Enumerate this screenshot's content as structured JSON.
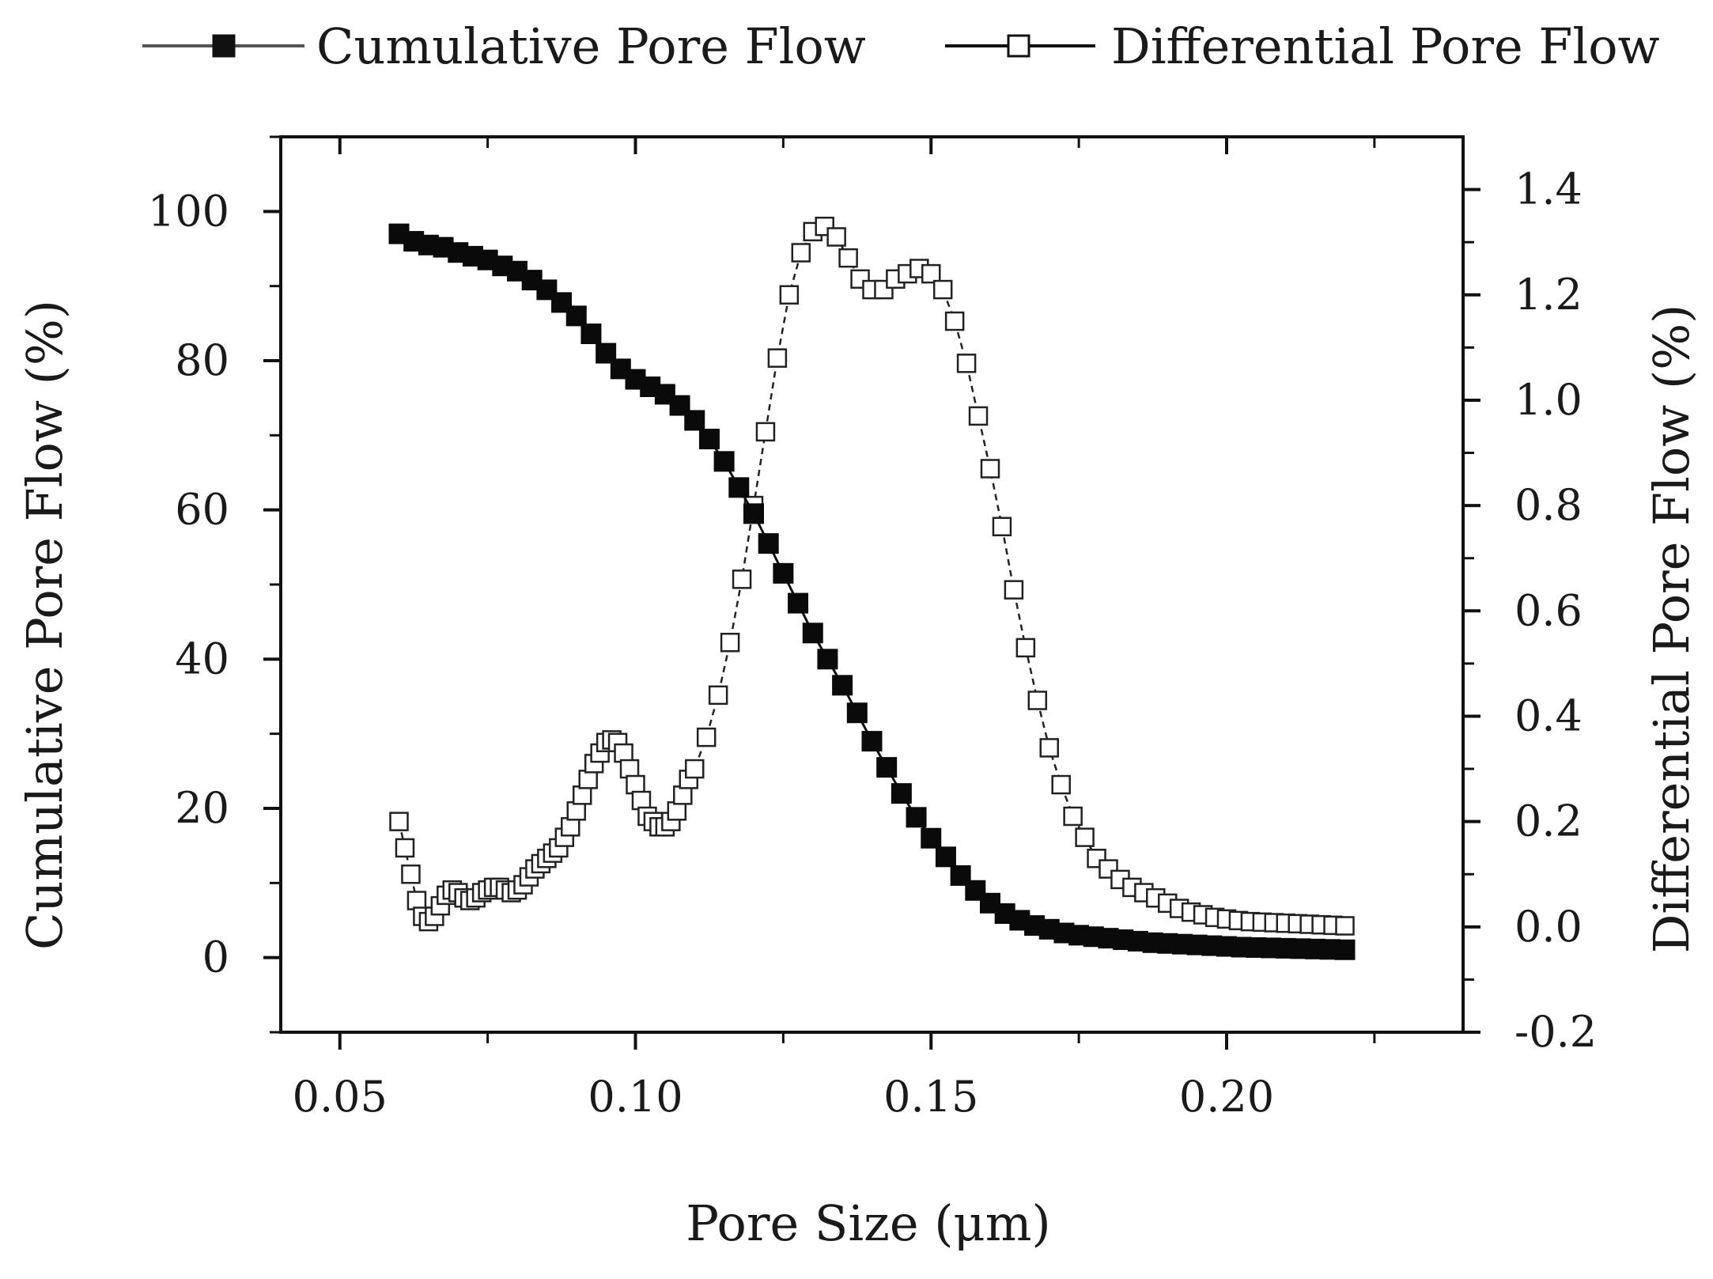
{
  "chart_data": {
    "type": "scatter",
    "title": "",
    "xlabel": "Pore Size (μm)",
    "ylabel_left": "Cumulative Pore Flow (%)",
    "ylabel_right": "Differential Pore Flow (%)",
    "xlim": [
      0.04,
      0.24
    ],
    "ylim_left": [
      -10,
      110
    ],
    "ylim_right": [
      -0.2,
      1.5
    ],
    "x_ticks": [
      "0.05",
      "0.10",
      "0.15",
      "0.20"
    ],
    "x_tick_values": [
      0.05,
      0.1,
      0.15,
      0.2
    ],
    "y_left_ticks": [
      "0",
      "20",
      "40",
      "60",
      "80",
      "100"
    ],
    "y_left_tick_values": [
      0,
      20,
      40,
      60,
      80,
      100
    ],
    "y_right_ticks": [
      "-0.2",
      "0.0",
      "0.2",
      "0.4",
      "0.6",
      "0.8",
      "1.0",
      "1.2",
      "1.4"
    ],
    "y_right_tick_values": [
      -0.2,
      0.0,
      0.2,
      0.4,
      0.6,
      0.8,
      1.0,
      1.2,
      1.4
    ],
    "legend_position": "top",
    "series": [
      {
        "name": "Cumulative Pore Flow",
        "axis": "left",
        "marker": "filled-square",
        "x": [
          0.06,
          0.0625,
          0.065,
          0.0675,
          0.07,
          0.0725,
          0.075,
          0.0775,
          0.08,
          0.0825,
          0.085,
          0.0875,
          0.09,
          0.0925,
          0.095,
          0.0975,
          0.1,
          0.1025,
          0.105,
          0.1075,
          0.11,
          0.1125,
          0.115,
          0.1175,
          0.12,
          0.1225,
          0.125,
          0.1275,
          0.13,
          0.1325,
          0.135,
          0.1375,
          0.14,
          0.1425,
          0.145,
          0.1475,
          0.15,
          0.1525,
          0.155,
          0.1575,
          0.16,
          0.1625,
          0.165,
          0.1675,
          0.17,
          0.1725,
          0.175,
          0.1775,
          0.18,
          0.1825,
          0.185,
          0.1875,
          0.19,
          0.1925,
          0.195,
          0.1975,
          0.2,
          0.2025,
          0.205,
          0.2075,
          0.21,
          0.2125,
          0.215,
          0.2175,
          0.22
        ],
        "values": [
          97,
          96,
          95.5,
          95.2,
          94.5,
          94,
          93.5,
          92.7,
          92,
          90.8,
          89.5,
          87.8,
          86,
          83.6,
          81,
          78.9,
          77.5,
          76.5,
          75.5,
          74,
          72,
          69.5,
          66.5,
          63,
          59.5,
          55.5,
          51.5,
          47.5,
          43.5,
          40,
          36.5,
          32.8,
          29,
          25.5,
          22,
          18.8,
          16,
          13.5,
          11,
          9,
          7.3,
          5.9,
          5,
          4.3,
          3.8,
          3.3,
          3,
          2.8,
          2.6,
          2.4,
          2.2,
          2,
          1.9,
          1.8,
          1.7,
          1.6,
          1.5,
          1.4,
          1.35,
          1.3,
          1.25,
          1.2,
          1.15,
          1.1,
          1.05
        ]
      },
      {
        "name": "Differential Pore Flow",
        "axis": "right",
        "marker": "open-square",
        "x": [
          0.06,
          0.061,
          0.062,
          0.063,
          0.064,
          0.065,
          0.066,
          0.067,
          0.068,
          0.069,
          0.07,
          0.071,
          0.072,
          0.073,
          0.074,
          0.075,
          0.076,
          0.077,
          0.078,
          0.079,
          0.08,
          0.081,
          0.082,
          0.083,
          0.084,
          0.085,
          0.086,
          0.087,
          0.088,
          0.089,
          0.09,
          0.091,
          0.092,
          0.093,
          0.094,
          0.095,
          0.096,
          0.097,
          0.098,
          0.099,
          0.1,
          0.101,
          0.102,
          0.103,
          0.104,
          0.105,
          0.106,
          0.107,
          0.108,
          0.109,
          0.11,
          0.112,
          0.114,
          0.116,
          0.118,
          0.12,
          0.122,
          0.124,
          0.126,
          0.128,
          0.13,
          0.132,
          0.134,
          0.136,
          0.138,
          0.14,
          0.142,
          0.144,
          0.146,
          0.148,
          0.15,
          0.152,
          0.154,
          0.156,
          0.158,
          0.16,
          0.162,
          0.164,
          0.166,
          0.168,
          0.17,
          0.172,
          0.174,
          0.176,
          0.178,
          0.18,
          0.182,
          0.184,
          0.186,
          0.188,
          0.19,
          0.192,
          0.194,
          0.196,
          0.198,
          0.2,
          0.202,
          0.204,
          0.206,
          0.208,
          0.21,
          0.212,
          0.214,
          0.216,
          0.218,
          0.22
        ],
        "values": [
          0.2,
          0.15,
          0.1,
          0.05,
          0.02,
          0.01,
          0.02,
          0.04,
          0.06,
          0.07,
          0.065,
          0.055,
          0.05,
          0.055,
          0.065,
          0.07,
          0.075,
          0.075,
          0.07,
          0.065,
          0.07,
          0.08,
          0.095,
          0.11,
          0.12,
          0.13,
          0.14,
          0.15,
          0.17,
          0.19,
          0.22,
          0.25,
          0.28,
          0.31,
          0.33,
          0.35,
          0.355,
          0.35,
          0.33,
          0.3,
          0.27,
          0.24,
          0.21,
          0.2,
          0.19,
          0.19,
          0.2,
          0.22,
          0.25,
          0.28,
          0.3,
          0.36,
          0.44,
          0.54,
          0.66,
          0.8,
          0.94,
          1.08,
          1.2,
          1.28,
          1.32,
          1.33,
          1.31,
          1.27,
          1.23,
          1.21,
          1.21,
          1.23,
          1.24,
          1.25,
          1.24,
          1.21,
          1.15,
          1.07,
          0.97,
          0.87,
          0.76,
          0.64,
          0.53,
          0.43,
          0.34,
          0.27,
          0.21,
          0.17,
          0.13,
          0.11,
          0.09,
          0.075,
          0.065,
          0.055,
          0.045,
          0.035,
          0.028,
          0.023,
          0.018,
          0.015,
          0.012,
          0.01,
          0.009,
          0.008,
          0.007,
          0.006,
          0.005,
          0.004,
          0.003,
          0.002
        ]
      }
    ]
  }
}
